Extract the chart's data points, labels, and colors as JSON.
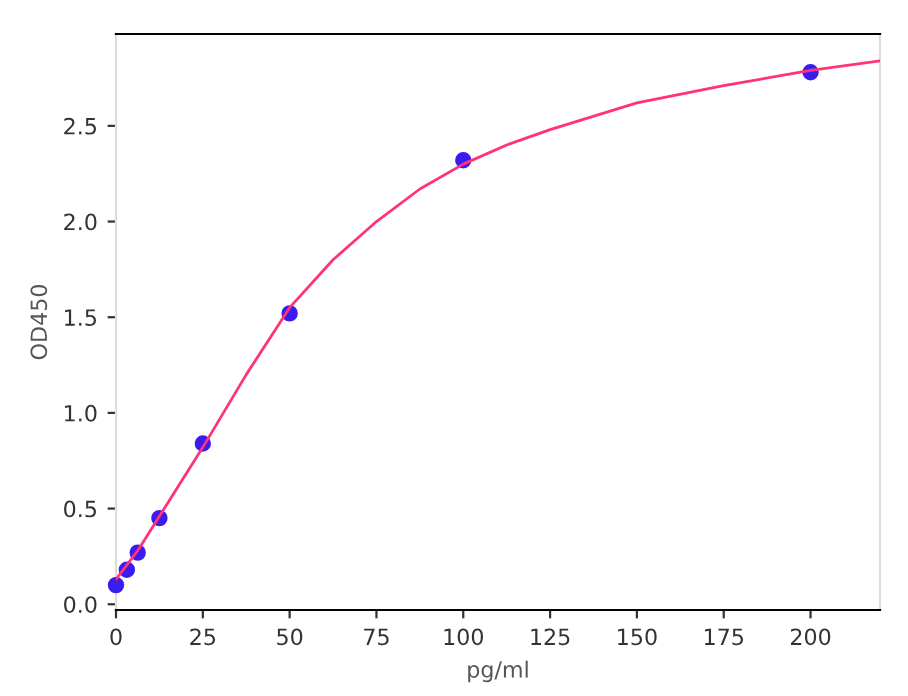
{
  "chart_data": {
    "type": "scatter",
    "xlabel": "pg/ml",
    "ylabel": "OD450",
    "xlim": [
      0,
      220
    ],
    "ylim": [
      -0.03,
      2.98
    ],
    "xticks": [
      0,
      25,
      50,
      75,
      100,
      125,
      150,
      175,
      200
    ],
    "yticks": [
      {
        "value": 0,
        "label": "0.0"
      },
      {
        "value": 0.5,
        "label": "0.5"
      },
      {
        "value": 1,
        "label": "1.0"
      },
      {
        "value": 1.5,
        "label": "1.5"
      },
      {
        "value": 2,
        "label": "2.0"
      },
      {
        "value": 2.5,
        "label": "2.5"
      }
    ],
    "grid": false,
    "legend": false,
    "series": [
      {
        "type": "line",
        "color": "#ff3377",
        "marker": "none",
        "line_style": "solid",
        "x": [
          0,
          6.25,
          12.5,
          18.75,
          25,
          37.5,
          50,
          62.5,
          75,
          87.5,
          100,
          112.5,
          125,
          150,
          175,
          200,
          220
        ],
        "values": [
          0.13,
          0.28,
          0.46,
          0.64,
          0.82,
          1.2,
          1.55,
          1.8,
          2.0,
          2.17,
          2.3,
          2.4,
          2.48,
          2.62,
          2.71,
          2.79,
          2.84
        ]
      },
      {
        "color": "#3a1cf0",
        "marker": "circle",
        "x": [
          0,
          3.125,
          6.25,
          12.5,
          25,
          50,
          100,
          200
        ],
        "values": [
          0.1,
          0.18,
          0.27,
          0.45,
          0.84,
          1.52,
          2.32,
          2.78
        ]
      }
    ]
  }
}
